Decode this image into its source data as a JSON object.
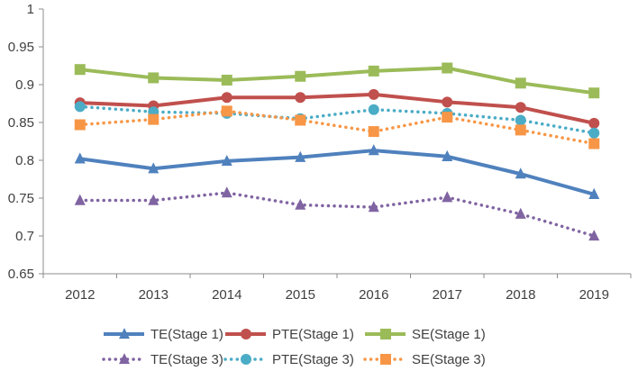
{
  "chart_data": {
    "type": "line",
    "title": "",
    "xlabel": "",
    "ylabel": "",
    "x": [
      "2012",
      "2013",
      "2014",
      "2015",
      "2016",
      "2017",
      "2018",
      "2019"
    ],
    "ylim": [
      0.65,
      1
    ],
    "yticks": [
      "0.65",
      "0.7",
      "0.75",
      "0.8",
      "0.85",
      "0.9",
      "0.95",
      "1"
    ],
    "grid": false,
    "legend_position": "bottom",
    "series": [
      {
        "name": "TE(Stage 1)",
        "color": "#4F81BD",
        "marker": "triangle",
        "dashed": false,
        "values": [
          0.802,
          0.789,
          0.799,
          0.804,
          0.813,
          0.805,
          0.782,
          0.755
        ]
      },
      {
        "name": "PTE(Stage 1)",
        "color": "#C0504D",
        "marker": "circle",
        "dashed": false,
        "values": [
          0.876,
          0.872,
          0.883,
          0.883,
          0.887,
          0.877,
          0.87,
          0.849
        ]
      },
      {
        "name": "SE(Stage 1)",
        "color": "#9BBB59",
        "marker": "square",
        "dashed": false,
        "values": [
          0.92,
          0.909,
          0.906,
          0.911,
          0.918,
          0.922,
          0.902,
          0.889
        ]
      },
      {
        "name": "TE(Stage 3)",
        "color": "#8064A2",
        "marker": "triangle",
        "dashed": true,
        "values": [
          0.747,
          0.747,
          0.757,
          0.741,
          0.738,
          0.751,
          0.729,
          0.7
        ]
      },
      {
        "name": "PTE(Stage 3)",
        "color": "#4BACC6",
        "marker": "circle",
        "dashed": true,
        "values": [
          0.871,
          0.864,
          0.862,
          0.855,
          0.867,
          0.862,
          0.853,
          0.836
        ]
      },
      {
        "name": "SE(Stage 3)",
        "color": "#F79646",
        "marker": "square",
        "dashed": true,
        "values": [
          0.847,
          0.854,
          0.865,
          0.853,
          0.838,
          0.857,
          0.84,
          0.822
        ]
      }
    ]
  }
}
